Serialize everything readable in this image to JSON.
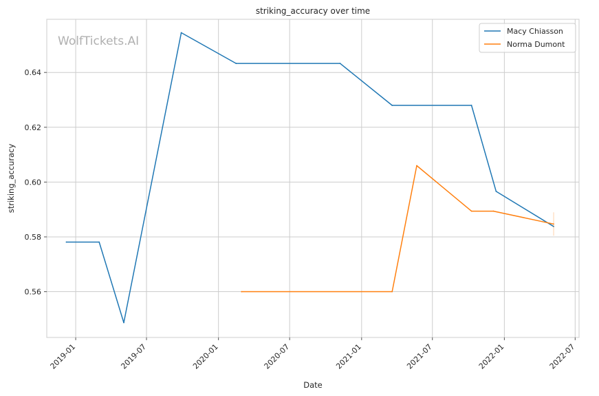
{
  "watermark": "WolfTickets.AI",
  "chart_data": {
    "type": "line",
    "title": "striking_accuracy over time",
    "xlabel": "Date",
    "ylabel": "striking_accuracy",
    "x_ticks": [
      "2019-01",
      "2019-07",
      "2020-01",
      "2020-07",
      "2021-01",
      "2021-07",
      "2022-01",
      "2022-07"
    ],
    "y_ticks": [
      0.56,
      0.58,
      0.6,
      0.62,
      0.64
    ],
    "y_tick_labels": [
      "0.56",
      "0.58",
      "0.60",
      "0.62",
      "0.64"
    ],
    "xlim": [
      "2018-10-19",
      "2022-07-11"
    ],
    "ylim": [
      0.5433,
      0.6594
    ],
    "grid": true,
    "legend_position": "top-right",
    "series": [
      {
        "name": "Macy Chiasson",
        "color": "#1f77b4",
        "points": [
          {
            "x": "2018-12-08",
            "y": 0.5781
          },
          {
            "x": "2019-03-02",
            "y": 0.5781
          },
          {
            "x": "2019-05-04",
            "y": 0.5487
          },
          {
            "x": "2019-09-28",
            "y": 0.6545
          },
          {
            "x": "2020-02-15",
            "y": 0.6433
          },
          {
            "x": "2020-11-07",
            "y": 0.6433
          },
          {
            "x": "2021-03-20",
            "y": 0.628
          },
          {
            "x": "2021-10-09",
            "y": 0.628
          },
          {
            "x": "2021-12-11",
            "y": 0.5966
          },
          {
            "x": "2022-05-07",
            "y": 0.5838
          }
        ]
      },
      {
        "name": "Norma Dumont",
        "color": "#ff7f0e",
        "points": [
          {
            "x": "2020-02-29",
            "y": 0.56
          },
          {
            "x": "2021-03-20",
            "y": 0.56
          },
          {
            "x": "2021-05-22",
            "y": 0.606
          },
          {
            "x": "2021-10-09",
            "y": 0.5894
          },
          {
            "x": "2021-12-04",
            "y": 0.5894
          },
          {
            "x": "2022-05-07",
            "y": 0.5847
          }
        ]
      }
    ]
  }
}
